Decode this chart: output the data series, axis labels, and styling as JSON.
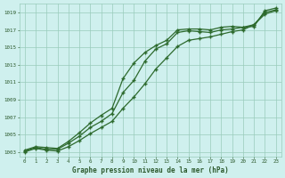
{
  "title": "Graphe pression niveau de la mer (hPa)",
  "hours": [
    0,
    1,
    2,
    3,
    4,
    5,
    6,
    7,
    8,
    9,
    10,
    11,
    12,
    13,
    14,
    15,
    16,
    17,
    18,
    19,
    20,
    21,
    22,
    23
  ],
  "line1": [
    1003.2,
    1003.6,
    1003.5,
    1003.4,
    1004.2,
    1005.2,
    1006.3,
    1007.2,
    1008.0,
    1011.4,
    1013.2,
    1014.4,
    1015.2,
    1015.8,
    1017.0,
    1017.1,
    1017.1,
    1017.0,
    1017.3,
    1017.4,
    1017.3,
    1017.4,
    1019.2,
    1019.5
  ],
  "line2": [
    1003.1,
    1003.5,
    1003.3,
    1003.3,
    1004.0,
    1004.8,
    1005.8,
    1006.5,
    1007.4,
    1009.8,
    1011.2,
    1013.4,
    1014.8,
    1015.4,
    1016.7,
    1016.9,
    1016.8,
    1016.7,
    1017.0,
    1017.1,
    1017.3,
    1017.6,
    1019.0,
    1019.3
  ],
  "line3": [
    1003.0,
    1003.4,
    1003.2,
    1003.1,
    1003.6,
    1004.3,
    1005.1,
    1005.8,
    1006.5,
    1008.0,
    1009.3,
    1010.8,
    1012.5,
    1013.8,
    1015.1,
    1015.8,
    1016.0,
    1016.2,
    1016.5,
    1016.8,
    1017.0,
    1017.6,
    1018.8,
    1019.2
  ],
  "line_color": "#2d6a2d",
  "bg_color": "#cff0ee",
  "grid_color": "#99ccbb",
  "text_color": "#2d5a2d",
  "ylim_min": 1002.5,
  "ylim_max": 1020.0,
  "yticks": [
    1003,
    1005,
    1007,
    1009,
    1011,
    1013,
    1015,
    1017,
    1019
  ]
}
